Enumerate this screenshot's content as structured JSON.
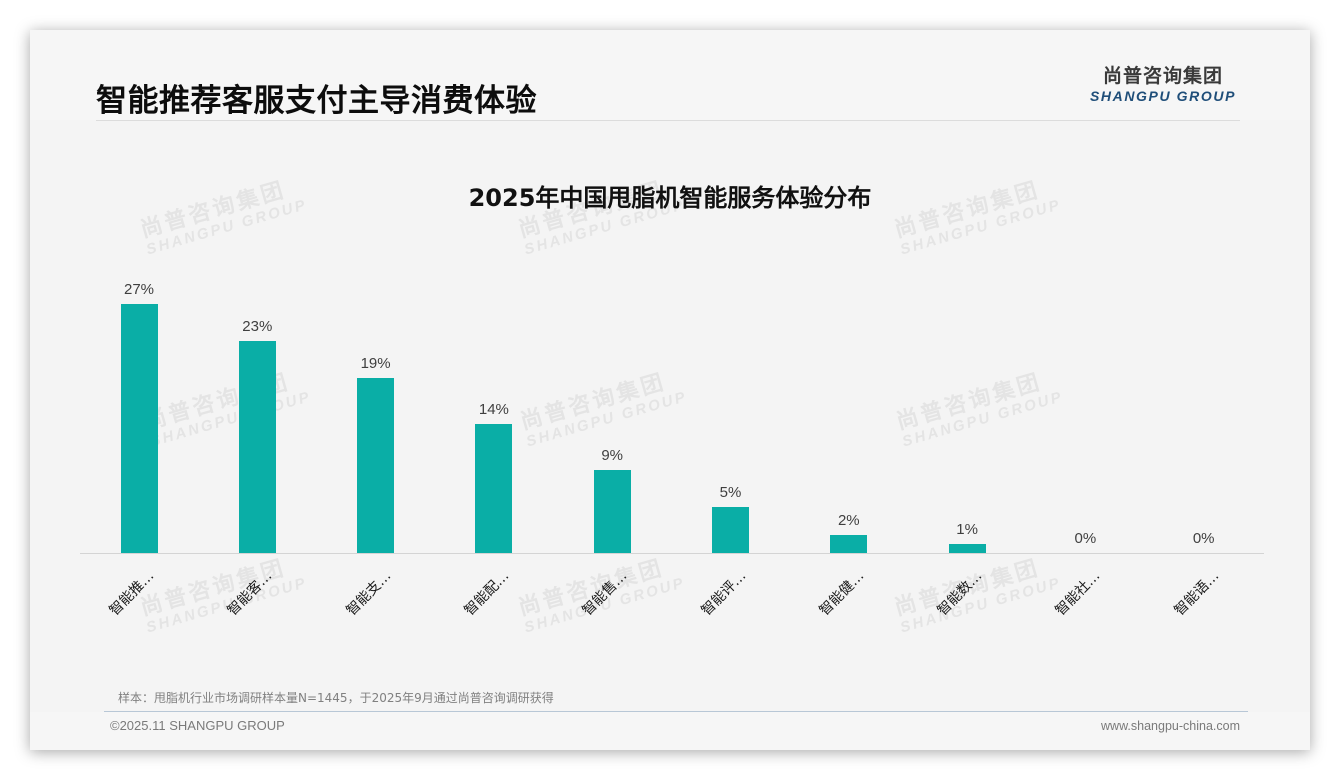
{
  "header": {
    "title": "智能推荐客服支付主导消费体验",
    "logo_cn": "尚普咨询集团",
    "logo_en": "SHANGPU GROUP"
  },
  "watermark": {
    "cn": "尚普咨询集团",
    "en": "SHANGPU GROUP"
  },
  "colors": {
    "bar": "#0aaea6",
    "background": "#f4f4f4",
    "logo_en": "#1f4e79"
  },
  "chart_data": {
    "type": "bar",
    "title": "2025年中国甩脂机智能服务体验分布",
    "xlabel": "",
    "ylabel": "",
    "ylim": [
      0,
      30
    ],
    "grid": false,
    "legend": null,
    "categories": [
      "智能推…",
      "智能客…",
      "智能支…",
      "智能配…",
      "智能售…",
      "智能评…",
      "智能健…",
      "智能数…",
      "智能社…",
      "智能语…"
    ],
    "values": [
      27,
      23,
      19,
      14,
      9,
      5,
      2,
      1,
      0,
      0
    ],
    "value_labels": [
      "27%",
      "23%",
      "19%",
      "14%",
      "9%",
      "5%",
      "2%",
      "1%",
      "0%",
      "0%"
    ],
    "unit": "%"
  },
  "footer": {
    "note": "样本：甩脂机行业市场调研样本量N=1445，于2025年9月通过尚普咨询调研获得",
    "copyright": "©2025.11 SHANGPU GROUP",
    "website": "www.shangpu-china.com"
  }
}
